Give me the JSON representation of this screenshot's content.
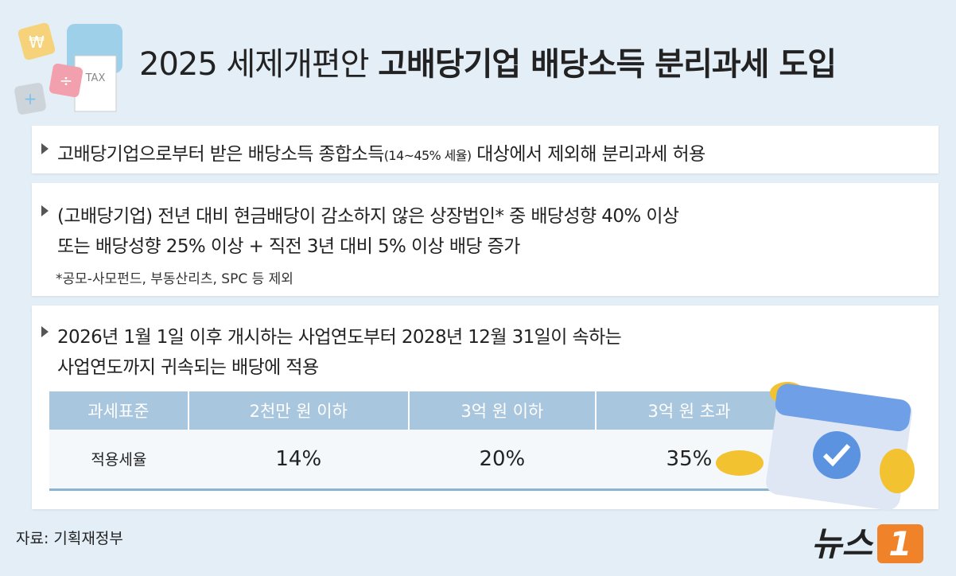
{
  "header": {
    "title_prefix": "2025 세제개편안",
    "title_main": "고배당기업 배당소득 분리과세 도입",
    "icon_texts": [
      "₩",
      "÷",
      "+",
      "TAX"
    ]
  },
  "sections": [
    {
      "lines": [
        [
          "고배당기업으로부터 받은 배당소득 종합소득",
          "(14~45% 세율)",
          " 대상에서 제외해 분리과세 허용"
        ]
      ]
    },
    {
      "lines": [
        [
          "(고배당기업) 전년 대비 현금배당이 감소하지 않은 상장법인* 중 배당성향 40% 이상"
        ],
        [
          "또는 배당성향 25% 이상 + 직전 3년 대비 5% 이상 배당 증가"
        ]
      ],
      "note": "*공모-사모펀드, 부동산리츠, SPC 등 제외"
    },
    {
      "lines": [
        [
          "2026년 1월 1일 이후 개시하는 사업연도부터 2028년 12월 31일이 속하는"
        ],
        [
          "사업연도까지 귀속되는 배당에 적용"
        ]
      ]
    }
  ],
  "table": {
    "header": [
      "과세표준",
      "2천만 원 이하",
      "3억 원 이하",
      "3억 원 초과"
    ],
    "rows": [
      [
        "적용세율",
        "14%",
        "20%",
        "35%"
      ]
    ]
  },
  "source": "자료: 기획재정부",
  "logo": {
    "text": "뉴스",
    "mark": "1"
  }
}
